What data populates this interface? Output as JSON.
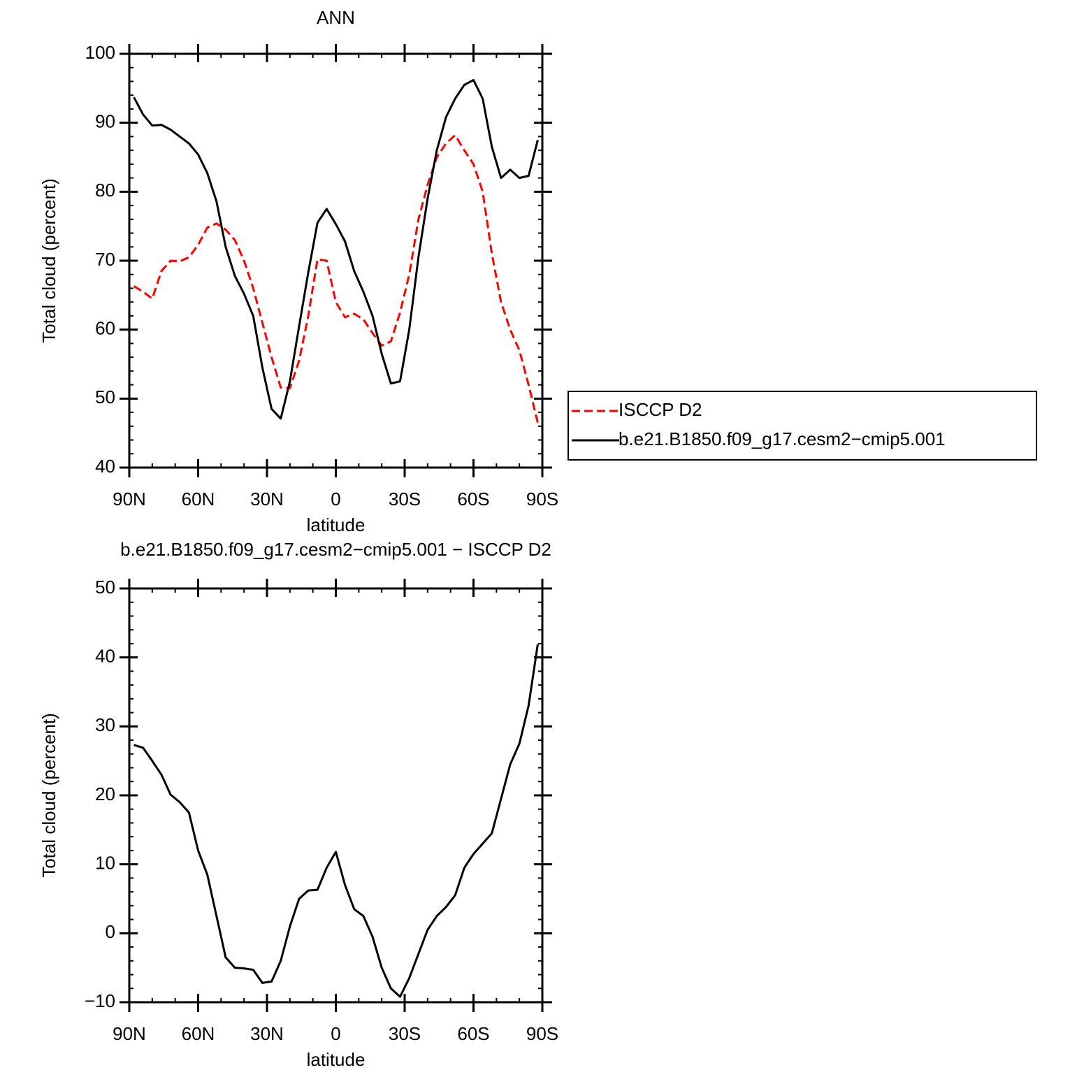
{
  "chart_data": [
    {
      "type": "line",
      "title": "ANN",
      "xlabel": "latitude",
      "ylabel": "Total cloud (percent)",
      "x": [
        88,
        84,
        80,
        76,
        72,
        68,
        64,
        60,
        56,
        52,
        48,
        44,
        40,
        36,
        32,
        28,
        24,
        20,
        16,
        12,
        8,
        4,
        0,
        -4,
        -8,
        -12,
        -16,
        -20,
        -24,
        -28,
        -32,
        -36,
        -40,
        -44,
        -48,
        -52,
        -56,
        -60,
        -64,
        -68,
        -72,
        -76,
        -80,
        -84,
        -88
      ],
      "xlim": [
        90,
        -90
      ],
      "xticks": [
        {
          "value": 90,
          "label": "90N"
        },
        {
          "value": 60,
          "label": "60N"
        },
        {
          "value": 30,
          "label": "30N"
        },
        {
          "value": 0,
          "label": "0"
        },
        {
          "value": -30,
          "label": "30S"
        },
        {
          "value": -60,
          "label": "60S"
        },
        {
          "value": -90,
          "label": "90S"
        }
      ],
      "ylim": [
        40,
        100
      ],
      "yticks": [
        40,
        50,
        60,
        70,
        80,
        90,
        100
      ],
      "legend": "right",
      "series": [
        {
          "name": "ISCCP D2",
          "color": "#ff0000",
          "line_style": "dashed",
          "values": [
            66.3,
            65.5,
            64.5,
            68.5,
            70,
            69.9,
            70.5,
            72.3,
            74.8,
            75.4,
            74.5,
            73,
            70,
            66,
            61,
            56,
            51.6,
            51.5,
            55.5,
            62,
            70.2,
            70,
            64,
            61.8,
            62.3,
            61.5,
            59.5,
            57.7,
            58.3,
            62.5,
            68,
            76,
            81,
            85,
            87,
            88.2,
            86,
            84,
            80,
            71,
            64,
            60,
            57,
            52,
            46.5
          ]
        },
        {
          "name": "b.e21.B1850.f09_g17.cesm2−cmip5.001",
          "color": "#000000",
          "line_style": "solid",
          "values": [
            93.7,
            91.2,
            89.6,
            89.7,
            89,
            88,
            87,
            85.4,
            82.7,
            78.6,
            72,
            67.8,
            65.2,
            62,
            54.5,
            48.5,
            47.1,
            52.5,
            60.5,
            68.3,
            75.5,
            77.5,
            75.3,
            72.8,
            68.5,
            65.5,
            62,
            56.5,
            52.2,
            52.5,
            60,
            70.5,
            79,
            86,
            90.8,
            93.5,
            95.5,
            96.2,
            93.5,
            86.5,
            82,
            83.2,
            82,
            82.3,
            87.5
          ]
        }
      ]
    },
    {
      "type": "line",
      "title": "b.e21.B1850.f09_g17.cesm2−cmip5.001 − ISCCP D2",
      "xlabel": "latitude",
      "ylabel": "Total cloud (percent)",
      "x": [
        88,
        84,
        80,
        76,
        72,
        68,
        64,
        60,
        56,
        52,
        48,
        44,
        40,
        36,
        32,
        28,
        24,
        20,
        16,
        12,
        8,
        4,
        0,
        -4,
        -8,
        -12,
        -16,
        -20,
        -24,
        -28,
        -32,
        -36,
        -40,
        -44,
        -48,
        -52,
        -56,
        -60,
        -64,
        -68,
        -72,
        -76,
        -80,
        -84,
        -88
      ],
      "xlim": [
        90,
        -90
      ],
      "xticks": [
        {
          "value": 90,
          "label": "90N"
        },
        {
          "value": 60,
          "label": "60N"
        },
        {
          "value": 30,
          "label": "30N"
        },
        {
          "value": 0,
          "label": "0"
        },
        {
          "value": -30,
          "label": "30S"
        },
        {
          "value": -60,
          "label": "60S"
        },
        {
          "value": -90,
          "label": "90S"
        }
      ],
      "ylim": [
        -10,
        50
      ],
      "yticks": [
        {
          "value": -10,
          "label": "−10"
        },
        0,
        10,
        20,
        30,
        40,
        50
      ],
      "series": [
        {
          "color": "#000000",
          "line_style": "solid",
          "values": [
            27.3,
            26.9,
            25,
            23,
            20.1,
            19,
            17.5,
            12,
            8.5,
            2.5,
            -3.5,
            -5,
            -5.1,
            -5.3,
            -7.2,
            -7,
            -4,
            1,
            5,
            6.2,
            6.3,
            9.5,
            11.8,
            7,
            3.5,
            2.5,
            -0.5,
            -5,
            -8,
            -9.2,
            -6.5,
            -3,
            0.5,
            2.5,
            3.8,
            5.5,
            9.5,
            11.5,
            13,
            14.5,
            19.5,
            24.5,
            27.5,
            33,
            41.9
          ]
        }
      ]
    }
  ]
}
